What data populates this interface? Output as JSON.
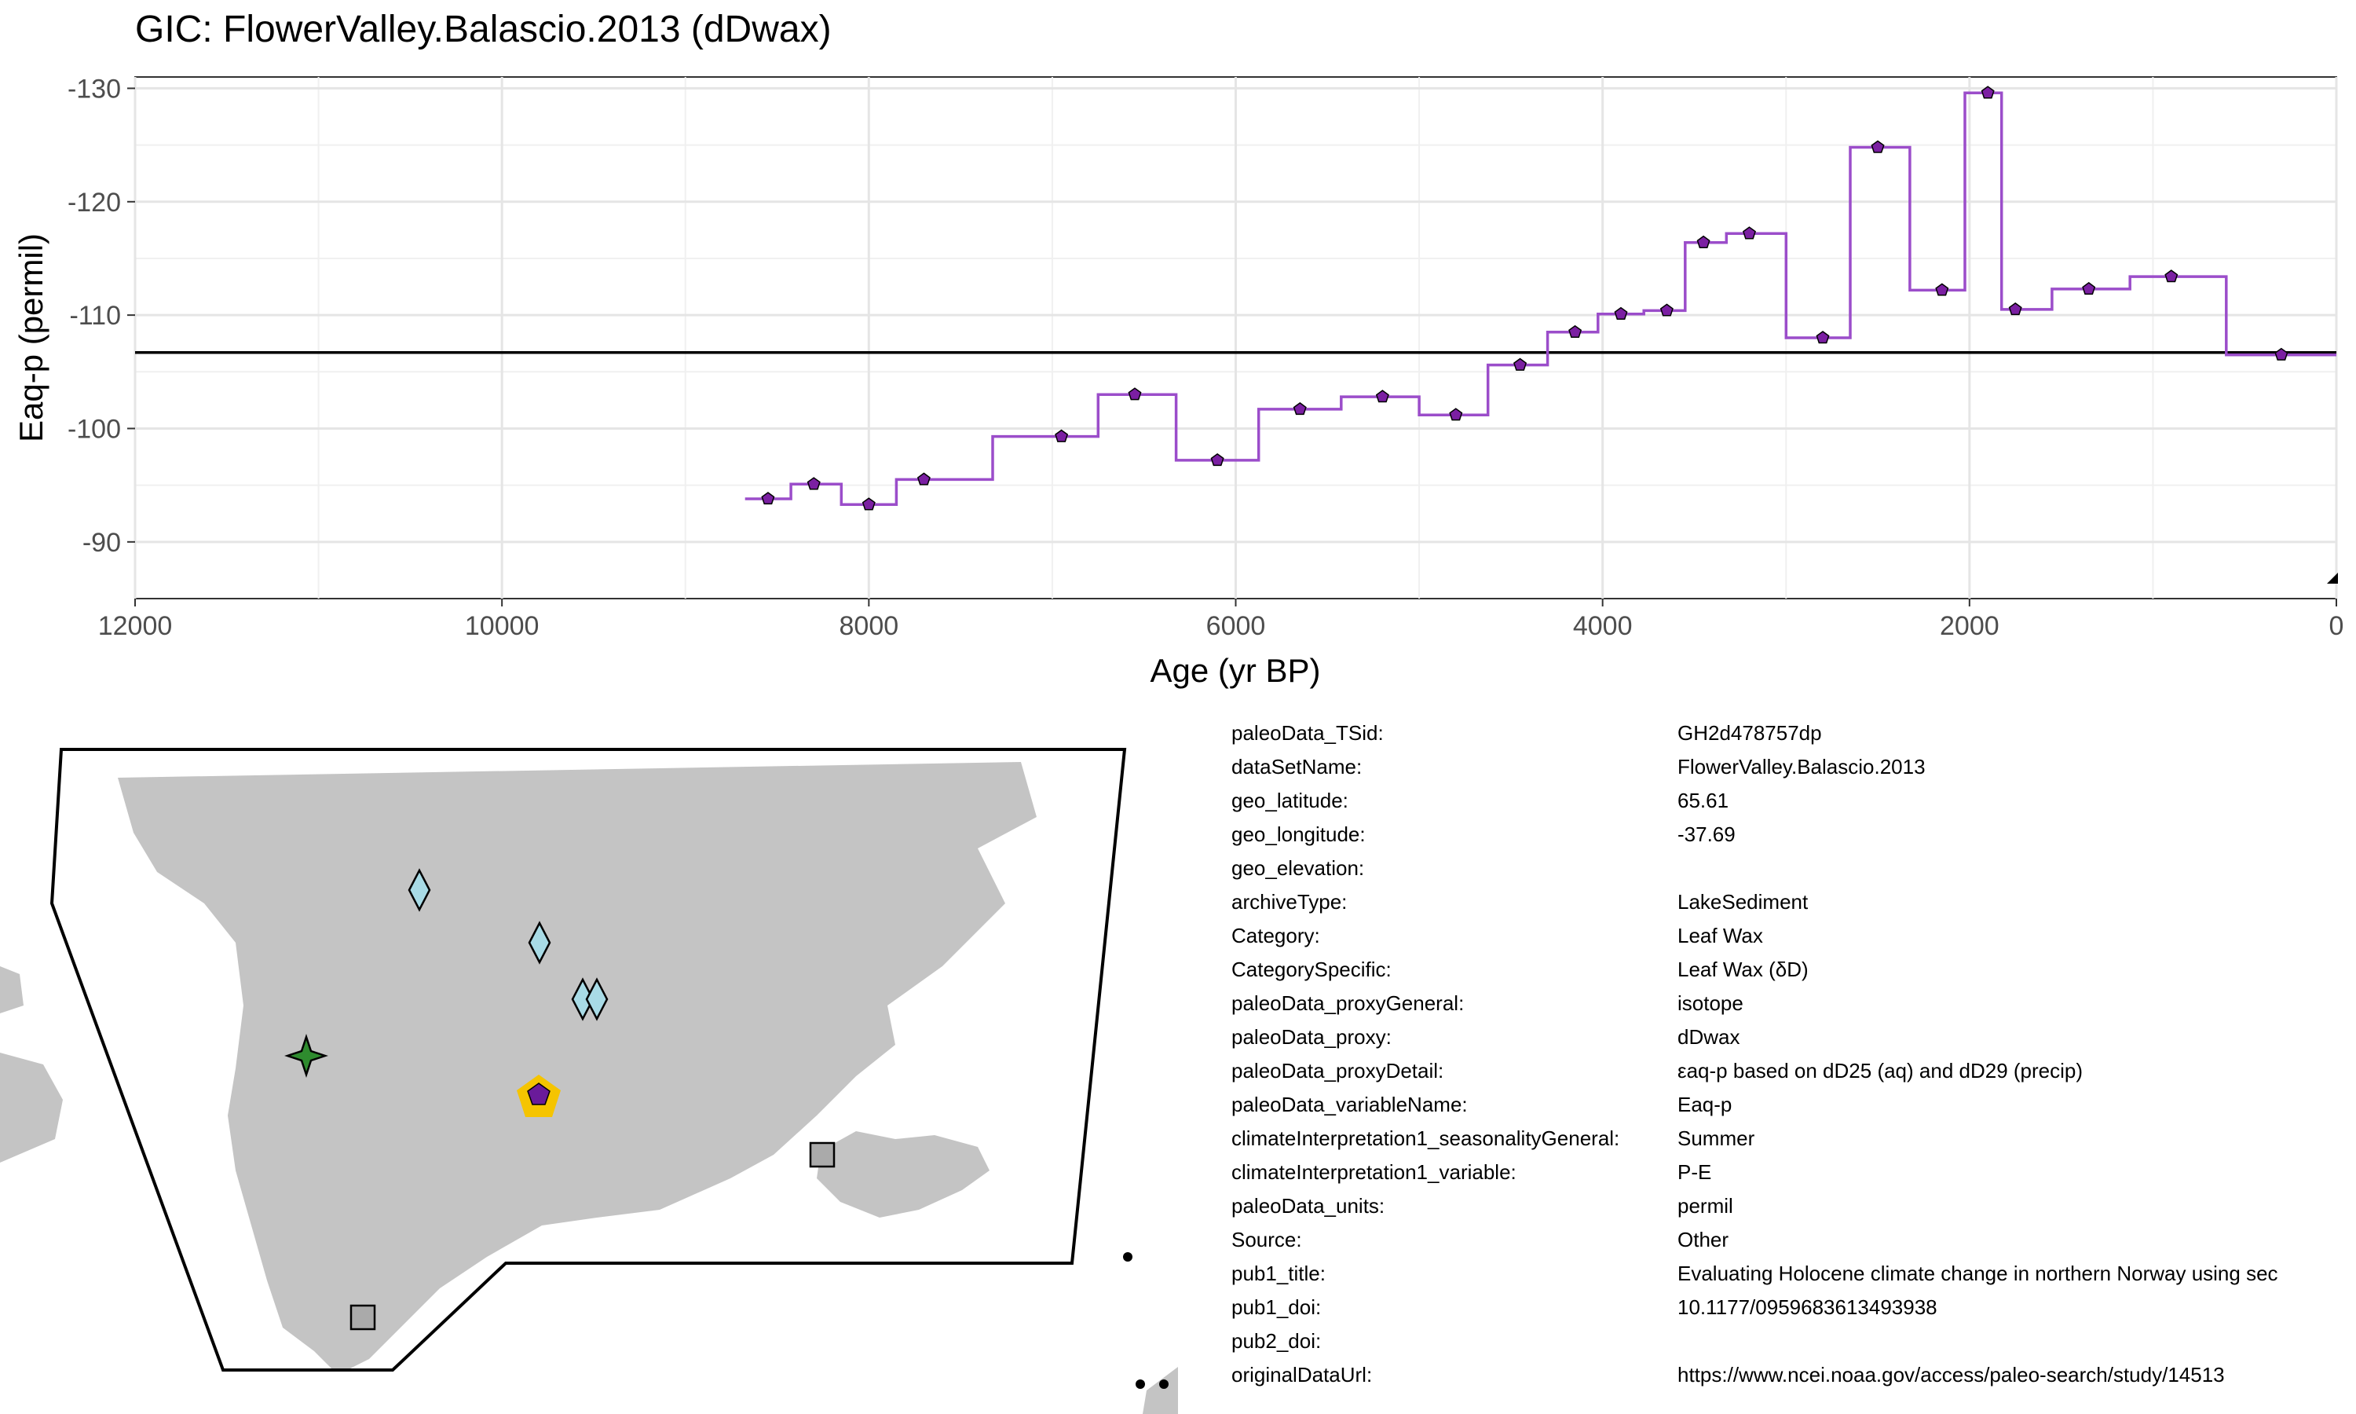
{
  "title": "GIC: FlowerValley.Balascio.2013 (dDwax)",
  "chart_data": {
    "type": "line",
    "step": true,
    "xlabel": "Age (yr BP)",
    "ylabel": "Eaq-p (permil)",
    "xlim": [
      12000,
      0
    ],
    "ylim": [
      -85,
      -131
    ],
    "x_ticks": [
      12000,
      10000,
      8000,
      6000,
      4000,
      2000,
      0
    ],
    "y_ticks": [
      -90,
      -100,
      -110,
      -120,
      -130
    ],
    "grid": true,
    "reference_line": -106.7,
    "series": [
      {
        "color": "#9b4dca",
        "marker_color": "#7b1fa2",
        "x": [
          8550,
          8300,
          8000,
          7700,
          6950,
          6550,
          6100,
          5650,
          5200,
          4800,
          4450,
          4150,
          3900,
          3650,
          3450,
          3200,
          2800,
          2500,
          2150,
          1900,
          1750,
          1350,
          900,
          300
        ],
        "y": [
          -93.8,
          -95.1,
          -93.3,
          -95.5,
          -99.3,
          -103.0,
          -97.2,
          -101.7,
          -102.8,
          -101.2,
          -105.6,
          -108.5,
          -110.1,
          -110.4,
          -116.4,
          -117.2,
          -108.0,
          -124.8,
          -112.2,
          -129.6,
          -110.5,
          -112.3,
          -113.4,
          -106.5
        ]
      }
    ]
  },
  "map": {
    "land_color": "#c4c4c4",
    "sites": [
      {
        "shape": "diamond",
        "color": "#a8dbe6"
      },
      {
        "shape": "diamond",
        "color": "#a8dbe6"
      },
      {
        "shape": "diamond",
        "color": "#a8dbe6"
      },
      {
        "shape": "diamond",
        "color": "#a8dbe6"
      },
      {
        "shape": "star",
        "color": "#2e8b2e"
      },
      {
        "shape": "pentagon",
        "color": "#6a1b9a",
        "highlight": "#f5c400"
      },
      {
        "shape": "square",
        "color": "#aaaaaa"
      },
      {
        "shape": "square",
        "color": "#aaaaaa"
      }
    ]
  },
  "metadata": [
    {
      "key": "paleoData_TSid:",
      "value": "GH2d478757dp"
    },
    {
      "key": "dataSetName:",
      "value": "FlowerValley.Balascio.2013"
    },
    {
      "key": "geo_latitude:",
      "value": "65.61"
    },
    {
      "key": "geo_longitude:",
      "value": "-37.69"
    },
    {
      "key": "geo_elevation:",
      "value": ""
    },
    {
      "key": "archiveType:",
      "value": "LakeSediment"
    },
    {
      "key": "Category:",
      "value": "Leaf Wax"
    },
    {
      "key": "CategorySpecific:",
      "value": "Leaf Wax (δD)"
    },
    {
      "key": "paleoData_proxyGeneral:",
      "value": "isotope"
    },
    {
      "key": "paleoData_proxy:",
      "value": "dDwax"
    },
    {
      "key": "paleoData_proxyDetail:",
      "value": "εaq-p based on dD25 (aq) and dD29 (precip)"
    },
    {
      "key": "paleoData_variableName:",
      "value": "Eaq-p"
    },
    {
      "key": "climateInterpretation1_seasonalityGeneral:",
      "value": "Summer"
    },
    {
      "key": "climateInterpretation1_variable:",
      "value": "P-E"
    },
    {
      "key": "paleoData_units:",
      "value": "permil"
    },
    {
      "key": "Source:",
      "value": "Other"
    },
    {
      "key": "pub1_title:",
      "value": "Evaluating Holocene climate change in northern Norway using sec"
    },
    {
      "key": "pub1_doi:",
      "value": "10.1177/0959683613493938"
    },
    {
      "key": "pub2_doi:",
      "value": ""
    },
    {
      "key": "originalDataUrl:",
      "value": "https://www.ncei.noaa.gov/access/paleo-search/study/14513"
    }
  ]
}
